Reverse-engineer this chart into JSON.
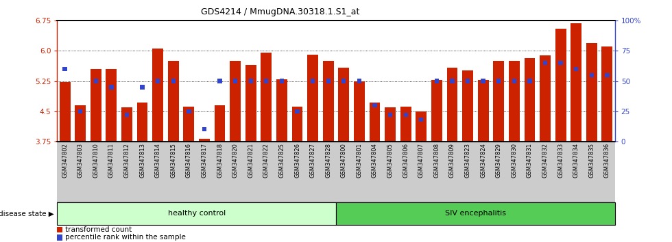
{
  "title": "GDS4214 / MmugDNA.30318.1.S1_at",
  "samples": [
    "GSM347802",
    "GSM347803",
    "GSM347810",
    "GSM347811",
    "GSM347812",
    "GSM347813",
    "GSM347814",
    "GSM347815",
    "GSM347816",
    "GSM347817",
    "GSM347818",
    "GSM347820",
    "GSM347821",
    "GSM347822",
    "GSM347825",
    "GSM347826",
    "GSM347827",
    "GSM347828",
    "GSM347800",
    "GSM347801",
    "GSM347804",
    "GSM347805",
    "GSM347806",
    "GSM347807",
    "GSM347808",
    "GSM347809",
    "GSM347823",
    "GSM347824",
    "GSM347829",
    "GSM347830",
    "GSM347831",
    "GSM347832",
    "GSM347833",
    "GSM347834",
    "GSM347835",
    "GSM347836"
  ],
  "red_values": [
    5.22,
    4.65,
    5.55,
    5.55,
    4.6,
    4.72,
    6.05,
    5.75,
    4.62,
    3.82,
    4.65,
    5.75,
    5.65,
    5.95,
    5.3,
    4.62,
    5.9,
    5.75,
    5.58,
    5.25,
    4.72,
    4.6,
    4.62,
    4.5,
    5.28,
    5.58,
    5.52,
    5.28,
    5.75,
    5.75,
    5.82,
    5.88,
    6.55,
    6.68,
    6.2,
    6.1
  ],
  "blue_pct": [
    60,
    25,
    50,
    45,
    22,
    45,
    50,
    50,
    25,
    10,
    50,
    50,
    50,
    50,
    50,
    25,
    50,
    50,
    50,
    50,
    30,
    22,
    22,
    18,
    50,
    50,
    50,
    50,
    50,
    50,
    50,
    65,
    65,
    60,
    55,
    55
  ],
  "group1_label": "healthy control",
  "group2_label": "SIV encephalitis",
  "group1_count": 18,
  "group2_count": 18,
  "ylim_left": [
    3.75,
    6.75
  ],
  "yticks_left": [
    3.75,
    4.5,
    5.25,
    6.0,
    6.75
  ],
  "ylim_right": [
    0,
    100
  ],
  "yticks_right": [
    0,
    25,
    50,
    75,
    100
  ],
  "red_color": "#CC2200",
  "blue_color": "#3344CC",
  "group1_bg": "#CCFFCC",
  "group2_bg": "#55CC55",
  "xtick_bg": "#CCCCCC",
  "bar_width": 0.7,
  "legend_red": "transformed count",
  "legend_blue": "percentile rank within the sample",
  "disease_state_label": "disease state"
}
